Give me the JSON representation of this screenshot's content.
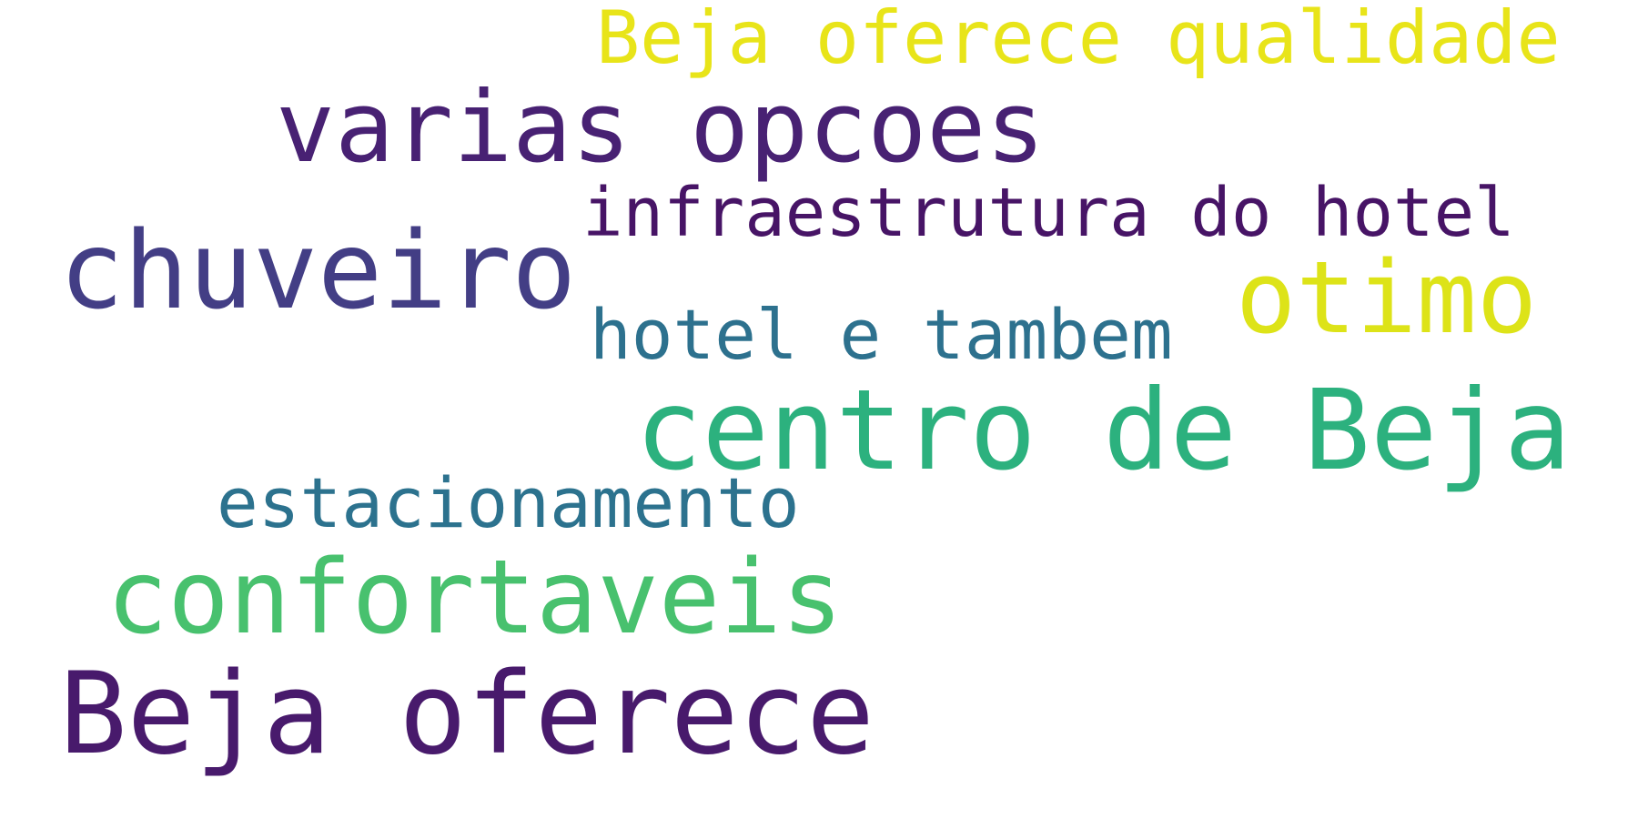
{
  "word_cloud": {
    "background": "#ffffff",
    "words": [
      {
        "text": "Beja oferece qualidade",
        "color": "#e8e419"
      },
      {
        "text": "varias opcoes",
        "color": "#482173"
      },
      {
        "text": "infraestrutura do hotel",
        "color": "#471466"
      },
      {
        "text": "chuveiro",
        "color": "#433e85"
      },
      {
        "text": "otimo",
        "color": "#dde318"
      },
      {
        "text": "hotel e tambem",
        "color": "#2d718e"
      },
      {
        "text": "centro de Beja",
        "color": "#2cb17e"
      },
      {
        "text": "estacionamento",
        "color": "#2c728e"
      },
      {
        "text": "confortaveis",
        "color": "#48c16e"
      },
      {
        "text": "Beja oferece",
        "color": "#481a6c"
      }
    ]
  }
}
